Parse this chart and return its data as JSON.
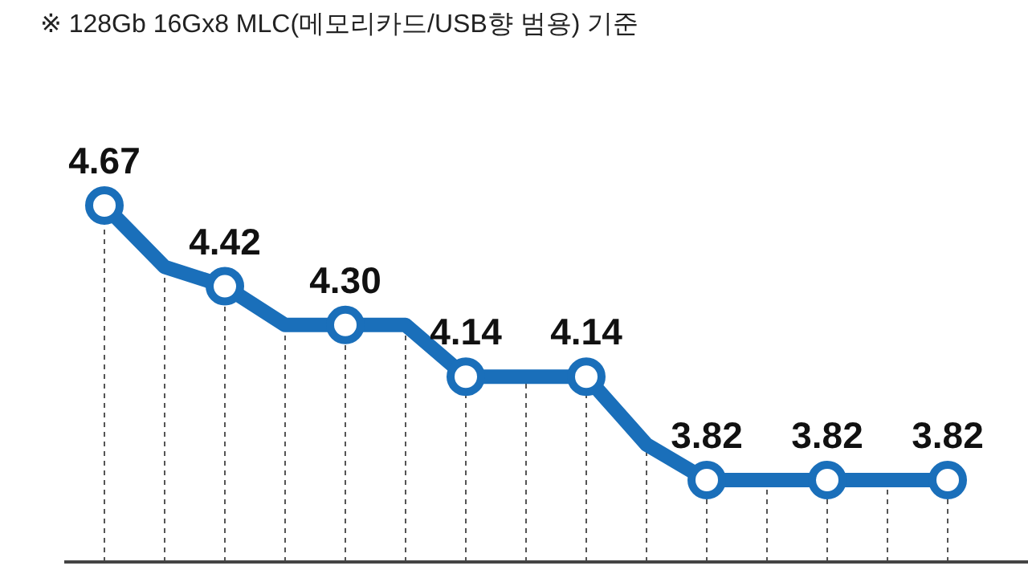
{
  "chart_data": {
    "type": "line",
    "annotations": [
      "※ 128Gb 16Gx8 MLC(메모리카드/USB향 범용) 기준"
    ],
    "categories": [
      null,
      null,
      null,
      null,
      null,
      null,
      null,
      null,
      null,
      null,
      null,
      null,
      null,
      null,
      null
    ],
    "grid": "x",
    "line_style": "solid",
    "marker": "circle",
    "series": [
      {
        "color": "#1a6fba",
        "values": [
          4.67,
          4.48,
          4.42,
          4.3,
          4.3,
          4.3,
          4.14,
          4.14,
          4.14,
          3.93,
          3.82,
          3.82,
          3.82,
          3.82,
          3.82
        ],
        "value_labels": [
          "4.67",
          null,
          "4.42",
          null,
          "4.30",
          null,
          "4.14",
          null,
          "4.14",
          null,
          "3.82",
          null,
          "3.82",
          null,
          "3.82"
        ]
      }
    ]
  }
}
